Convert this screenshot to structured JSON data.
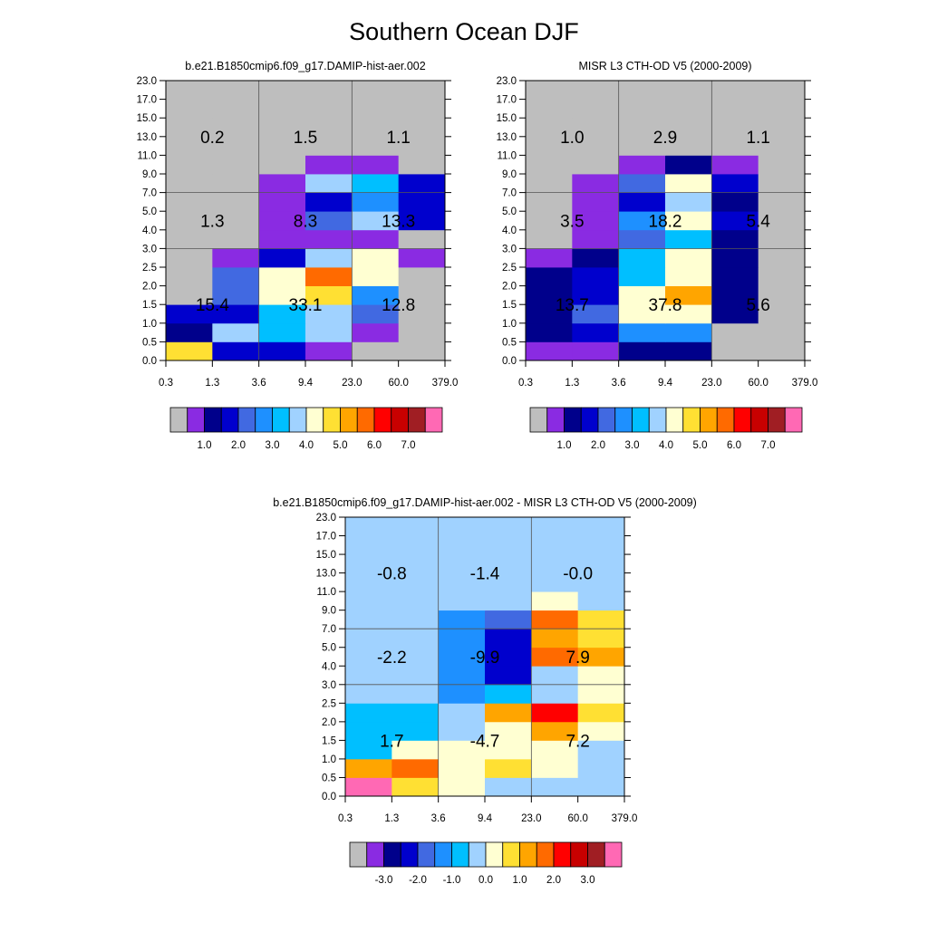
{
  "title": "Southern Ocean DJF",
  "chart_data": [
    {
      "type": "heatmap",
      "title": "b.e21.B1850cmip6.f09_g17.DAMIP-hist-aer.002",
      "x_ticks": [
        "0.3",
        "1.3",
        "3.6",
        "9.4",
        "23.0",
        "60.0",
        "379.0"
      ],
      "y_ticks": [
        "0.0",
        "0.5",
        "1.0",
        "1.5",
        "2.0",
        "2.5",
        "3.0",
        "4.0",
        "5.0",
        "7.0",
        "9.0",
        "11.0",
        "13.0",
        "15.0",
        "17.0",
        "23.0"
      ],
      "colorbar_labels": [
        "1.0",
        "2.0",
        "3.0",
        "4.0",
        "5.0",
        "6.0",
        "7.0"
      ],
      "bins_coarse_x": [
        0,
        2,
        4,
        6
      ],
      "bins_coarse_y": [
        0,
        6,
        9,
        15
      ],
      "bin_sums": [
        {
          "value": "0.2",
          "col": 0,
          "row": 2
        },
        {
          "value": "1.5",
          "col": 1,
          "row": 2
        },
        {
          "value": "1.1",
          "col": 2,
          "row": 2
        },
        {
          "value": "1.3",
          "col": 0,
          "row": 1
        },
        {
          "value": "8.3",
          "col": 1,
          "row": 1
        },
        {
          "value": "13.3",
          "col": 2,
          "row": 1
        },
        {
          "value": "15.4",
          "col": 0,
          "row": 0
        },
        {
          "value": "33.1",
          "col": 1,
          "row": 0
        },
        {
          "value": "12.8",
          "col": 2,
          "row": 0
        }
      ],
      "cells": [
        [
          9,
          3,
          3,
          1,
          0,
          0
        ],
        [
          2,
          7,
          6,
          7,
          1,
          0
        ],
        [
          3,
          3,
          6,
          7,
          4,
          0
        ],
        [
          0,
          4,
          8,
          9,
          5,
          0
        ],
        [
          0,
          4,
          8,
          11,
          8,
          0
        ],
        [
          0,
          1,
          3,
          7,
          8,
          1
        ],
        [
          0,
          0,
          1,
          1,
          1,
          0
        ],
        [
          0,
          0,
          1,
          4,
          7,
          3
        ],
        [
          0,
          0,
          1,
          3,
          5,
          3
        ],
        [
          0,
          0,
          1,
          7,
          6,
          3
        ],
        [
          0,
          0,
          0,
          1,
          1,
          0
        ],
        [
          0,
          0,
          0,
          0,
          0,
          0
        ],
        [
          0,
          0,
          0,
          0,
          0,
          0
        ],
        [
          0,
          0,
          0,
          0,
          0,
          0
        ],
        [
          0,
          0,
          0,
          0,
          0,
          0
        ]
      ]
    },
    {
      "type": "heatmap",
      "title": "MISR L3 CTH-OD V5 (2000-2009)",
      "x_ticks": [
        "0.3",
        "1.3",
        "3.6",
        "9.4",
        "23.0",
        "60.0",
        "379.0"
      ],
      "y_ticks": [
        "0.0",
        "0.5",
        "1.0",
        "1.5",
        "2.0",
        "2.5",
        "3.0",
        "4.0",
        "5.0",
        "7.0",
        "9.0",
        "11.0",
        "13.0",
        "15.0",
        "17.0",
        "23.0"
      ],
      "colorbar_labels": [
        "1.0",
        "2.0",
        "3.0",
        "4.0",
        "5.0",
        "6.0",
        "7.0"
      ],
      "bins_coarse_x": [
        0,
        2,
        4,
        6
      ],
      "bins_coarse_y": [
        0,
        6,
        9,
        15
      ],
      "bin_sums": [
        {
          "value": "1.0",
          "col": 0,
          "row": 2
        },
        {
          "value": "2.9",
          "col": 1,
          "row": 2
        },
        {
          "value": "1.1",
          "col": 2,
          "row": 2
        },
        {
          "value": "3.5",
          "col": 0,
          "row": 1
        },
        {
          "value": "18.2",
          "col": 1,
          "row": 1
        },
        {
          "value": "5.4",
          "col": 2,
          "row": 1
        },
        {
          "value": "13.7",
          "col": 0,
          "row": 0
        },
        {
          "value": "37.8",
          "col": 1,
          "row": 0
        },
        {
          "value": "5.6",
          "col": 2,
          "row": 0
        }
      ],
      "cells": [
        [
          1,
          1,
          2,
          2,
          0,
          0
        ],
        [
          2,
          3,
          5,
          5,
          0,
          0
        ],
        [
          2,
          4,
          8,
          8,
          2,
          0
        ],
        [
          2,
          3,
          8,
          10,
          2,
          0
        ],
        [
          2,
          3,
          6,
          8,
          2,
          0
        ],
        [
          1,
          2,
          6,
          8,
          2,
          0
        ],
        [
          0,
          1,
          4,
          6,
          2,
          0
        ],
        [
          0,
          1,
          5,
          8,
          3,
          0
        ],
        [
          0,
          1,
          3,
          7,
          2,
          0
        ],
        [
          0,
          1,
          4,
          8,
          3,
          0
        ],
        [
          0,
          0,
          1,
          2,
          1,
          0
        ],
        [
          0,
          0,
          0,
          0,
          0,
          0
        ],
        [
          0,
          0,
          0,
          0,
          0,
          0
        ],
        [
          0,
          0,
          0,
          0,
          0,
          0
        ],
        [
          0,
          0,
          0,
          0,
          0,
          0
        ]
      ]
    },
    {
      "type": "heatmap",
      "title": "b.e21.B1850cmip6.f09_g17.DAMIP-hist-aer.002 - MISR L3 CTH-OD V5 (2000-2009)",
      "x_ticks": [
        "0.3",
        "1.3",
        "3.6",
        "9.4",
        "23.0",
        "60.0",
        "379.0"
      ],
      "y_ticks": [
        "0.0",
        "0.5",
        "1.0",
        "1.5",
        "2.0",
        "2.5",
        "3.0",
        "4.0",
        "5.0",
        "7.0",
        "9.0",
        "11.0",
        "13.0",
        "15.0",
        "17.0",
        "23.0"
      ],
      "colorbar_labels": [
        "-3.0",
        "-2.0",
        "-1.0",
        "0.0",
        "1.0",
        "2.0",
        "3.0"
      ],
      "bins_coarse_x": [
        0,
        2,
        4,
        6
      ],
      "bins_coarse_y": [
        0,
        6,
        9,
        15
      ],
      "bin_sums": [
        {
          "value": "-0.8",
          "col": 0,
          "row": 2
        },
        {
          "value": "-1.4",
          "col": 1,
          "row": 2
        },
        {
          "value": "-0.0",
          "col": 2,
          "row": 2
        },
        {
          "value": "-2.2",
          "col": 0,
          "row": 1
        },
        {
          "value": "-9.9",
          "col": 1,
          "row": 1
        },
        {
          "value": "7.9",
          "col": 2,
          "row": 1
        },
        {
          "value": "1.7",
          "col": 0,
          "row": 0
        },
        {
          "value": "-4.7",
          "col": 1,
          "row": 0
        },
        {
          "value": "7.2",
          "col": 2,
          "row": 0
        }
      ],
      "cells": [
        [
          15,
          9,
          8,
          7,
          7,
          7
        ],
        [
          10,
          11,
          8,
          9,
          8,
          7
        ],
        [
          6,
          8,
          8,
          8,
          8,
          7
        ],
        [
          6,
          6,
          7,
          8,
          10,
          8
        ],
        [
          6,
          6,
          7,
          10,
          12,
          9
        ],
        [
          7,
          7,
          5,
          6,
          7,
          8
        ],
        [
          7,
          7,
          5,
          3,
          7,
          8
        ],
        [
          7,
          7,
          5,
          3,
          11,
          10
        ],
        [
          7,
          7,
          5,
          3,
          10,
          9
        ],
        [
          7,
          7,
          5,
          4,
          11,
          9
        ],
        [
          7,
          7,
          7,
          7,
          8,
          7
        ],
        [
          7,
          7,
          7,
          7,
          7,
          7
        ],
        [
          7,
          7,
          7,
          7,
          7,
          7
        ],
        [
          7,
          7,
          7,
          7,
          7,
          7
        ],
        [
          7,
          7,
          7,
          7,
          7,
          7
        ]
      ]
    }
  ],
  "palette": [
    "#bebebe",
    "#8a2be2",
    "#00008b",
    "#0000cd",
    "#4169e1",
    "#1e90ff",
    "#00bfff",
    "#a0d2ff",
    "#ffffd2",
    "#ffe033",
    "#ffa500",
    "#ff6a00",
    "#ff0000",
    "#c80000",
    "#a01e23",
    "#ff69b4"
  ]
}
